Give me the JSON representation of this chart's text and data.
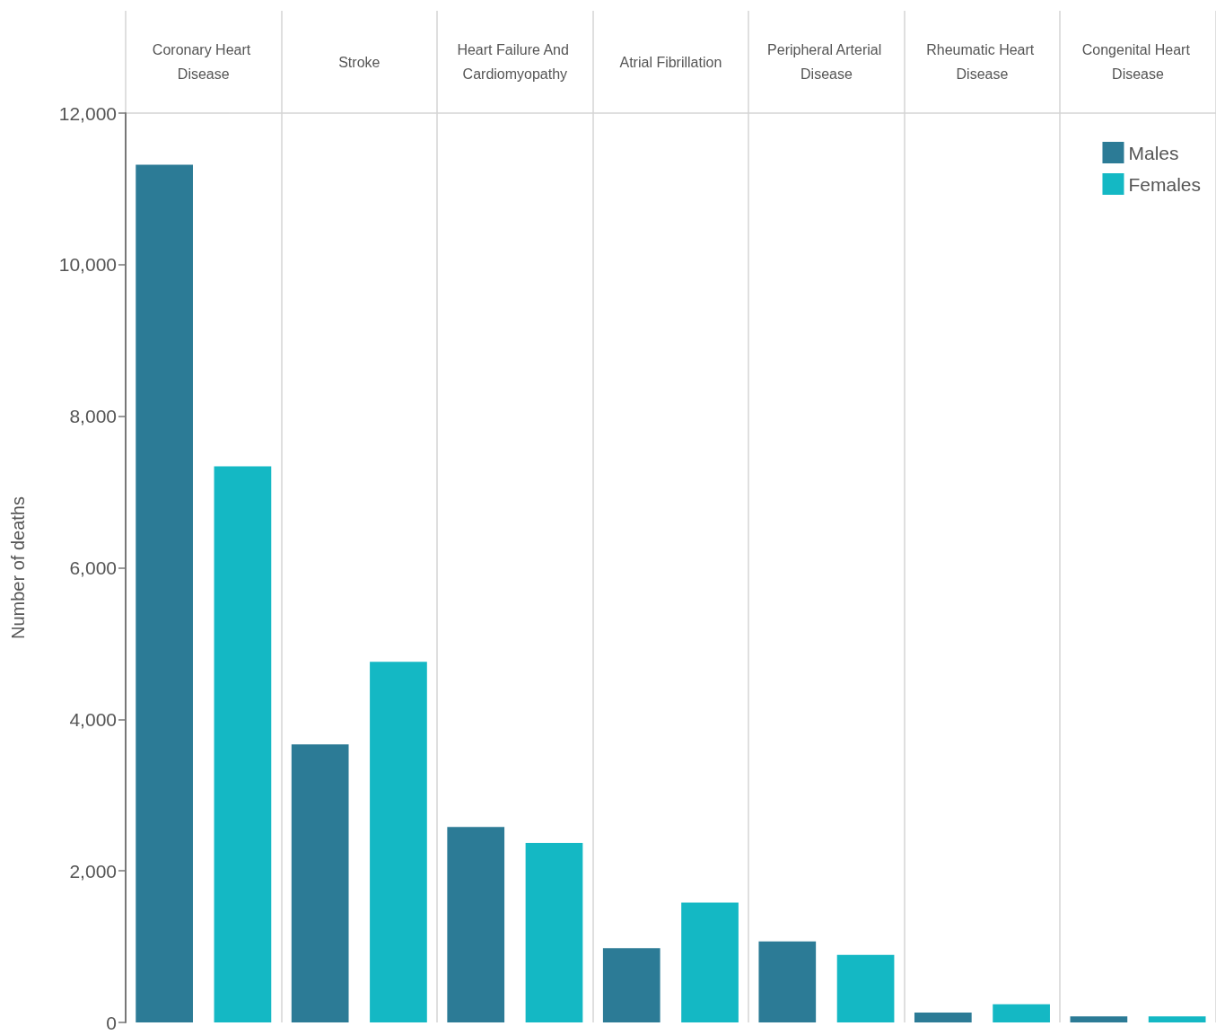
{
  "chart_data": {
    "type": "bar",
    "ylabel": "Number of deaths",
    "categories": [
      "Coronary Heart Disease",
      "Stroke",
      "Heart Failure And Cardiomyopathy",
      "Atrial Fibrillation",
      "Peripheral Arterial Disease",
      "Rheumatic Heart Disease",
      "Congenital Heart Disease"
    ],
    "series": [
      {
        "name": "Males",
        "color": "#2c7b96",
        "values": [
          11320,
          3670,
          2580,
          980,
          1070,
          130,
          80
        ]
      },
      {
        "name": "Females",
        "color": "#14b8c4",
        "values": [
          7340,
          4760,
          2370,
          1580,
          890,
          240,
          80
        ]
      }
    ],
    "ylim": [
      0,
      12000
    ],
    "yticks": [
      0,
      {
        "value": 2000,
        "label": "2,000"
      },
      {
        "value": 4000,
        "label": "4,000"
      },
      {
        "value": 6000,
        "label": "6,000"
      },
      {
        "value": 8000,
        "label": "8,000"
      },
      {
        "value": 10000,
        "label": "10,000"
      },
      {
        "value": 12000,
        "label": "12,000"
      }
    ],
    "grid": "x",
    "legend": "top right"
  }
}
